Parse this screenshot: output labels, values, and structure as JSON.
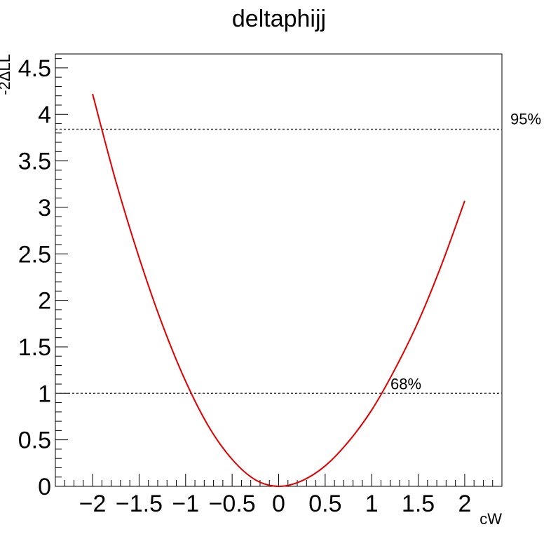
{
  "chart_data": {
    "type": "line",
    "title": "deltaphijj",
    "xlabel": "cW",
    "ylabel": "-2ΔLL",
    "xlim": [
      -2.4,
      2.4
    ],
    "ylim": [
      0,
      4.65
    ],
    "xticks": [
      -2,
      -1.5,
      -1,
      -0.5,
      0,
      0.5,
      1,
      1.5,
      2
    ],
    "xtick_labels": [
      "−2",
      "−1.5",
      "−1",
      "−0.5",
      "0",
      "0.5",
      "1",
      "1.5",
      "2"
    ],
    "yticks": [
      0,
      0.5,
      1,
      1.5,
      2,
      2.5,
      3,
      3.5,
      4,
      4.5
    ],
    "ytick_labels": [
      "0",
      "0.5",
      "1",
      "1.5",
      "2",
      "2.5",
      "3",
      "3.5",
      "4",
      "4.5"
    ],
    "series": [
      {
        "color": "#e00000",
        "x": [
          -2.0,
          -1.75,
          -1.5,
          -1.25,
          -1.0,
          -0.75,
          -0.5,
          -0.25,
          0.0,
          0.25,
          0.5,
          0.75,
          1.0,
          1.25,
          1.5,
          1.75,
          2.0
        ],
        "y": [
          4.22,
          3.28,
          2.46,
          1.74,
          1.13,
          0.64,
          0.29,
          0.07,
          0.0,
          0.06,
          0.22,
          0.48,
          0.82,
          1.26,
          1.77,
          2.38,
          3.07
        ]
      }
    ],
    "reference_lines": [
      {
        "y": 1.0,
        "label": "68%",
        "style": "dotted"
      },
      {
        "y": 3.84,
        "label": "95%",
        "style": "dotted"
      }
    ],
    "grid": false
  }
}
